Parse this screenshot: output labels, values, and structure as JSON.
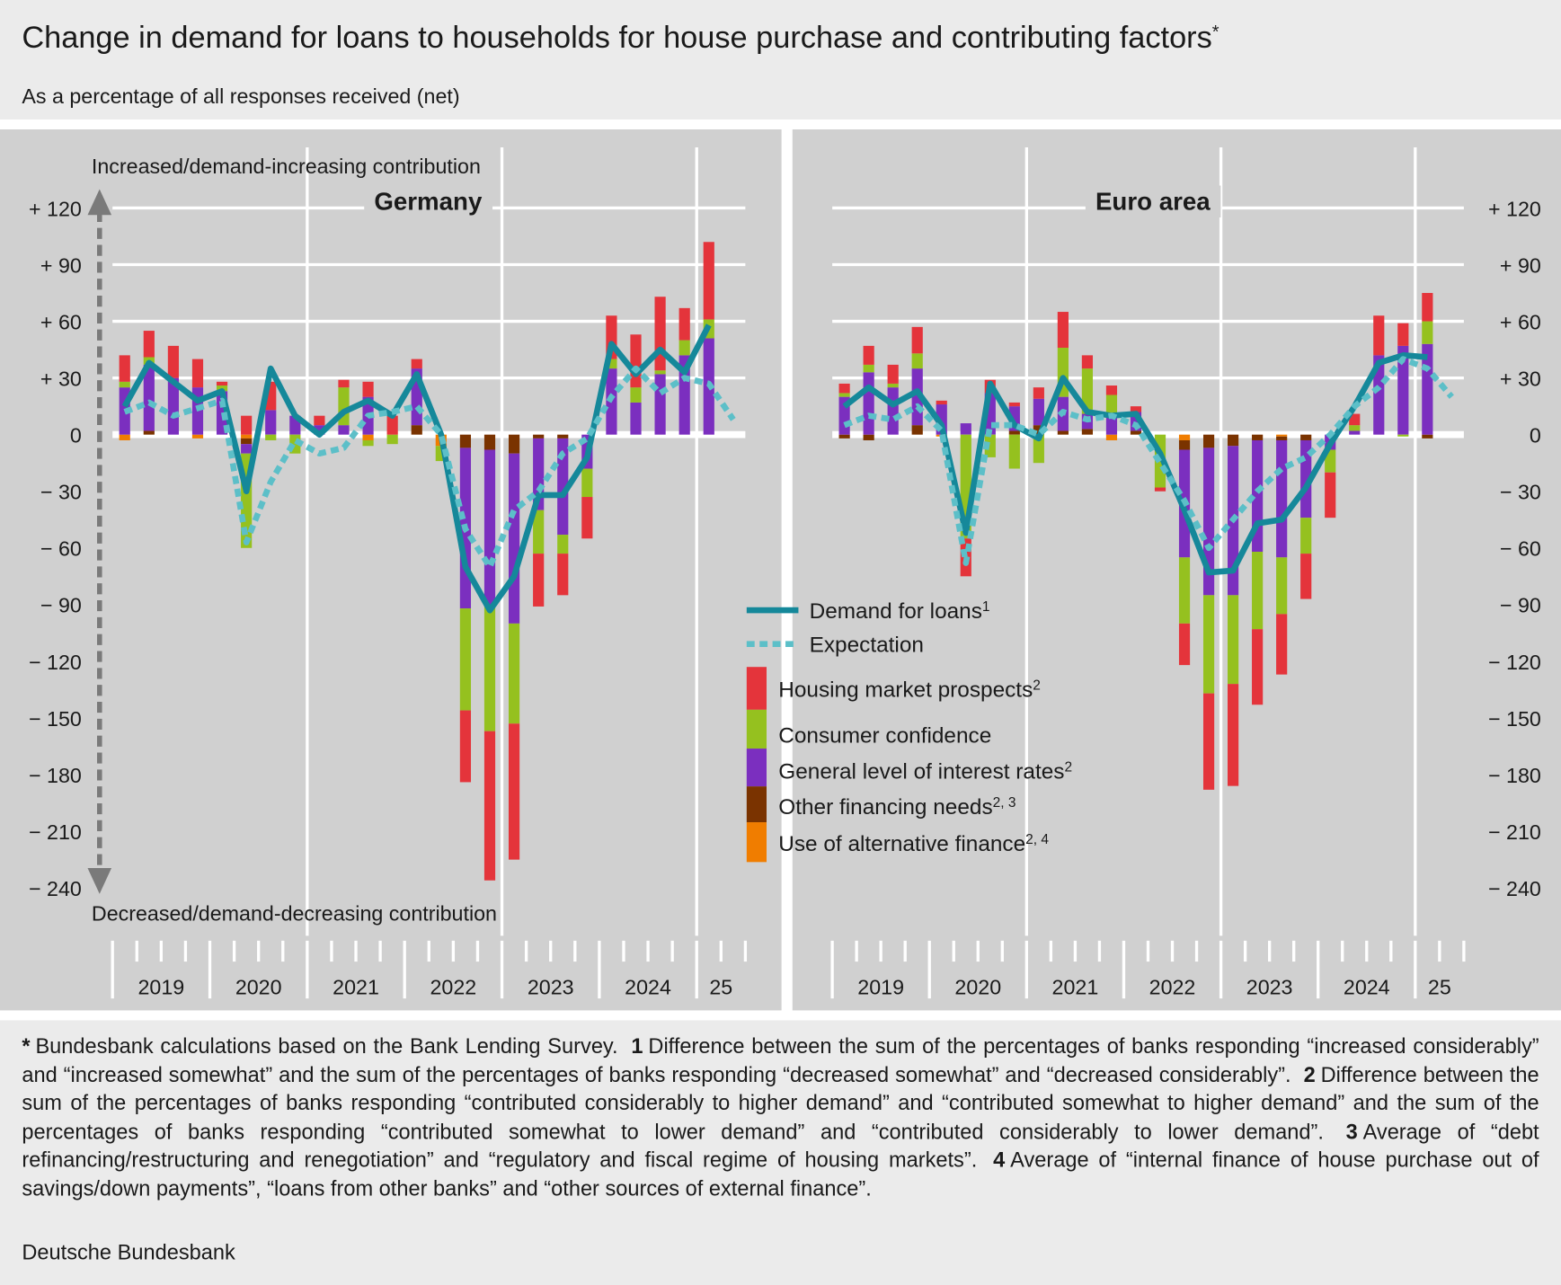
{
  "title": "Change in demand for loans to households for house purchase and contributing factors",
  "title_note": "*",
  "subtitle": "As a percentage of all responses received (net)",
  "axis_top_label": "Increased/demand-increasing contribution",
  "axis_bottom_label": "Decreased/demand-decreasing contribution",
  "legend": {
    "lines": [
      {
        "name": "Demand for loans",
        "note": "1",
        "color": "#15889a",
        "dashed": false
      },
      {
        "name": "Expectation",
        "note": null,
        "color": "#5cbfc8",
        "dashed": true
      }
    ],
    "bars": [
      {
        "name": "Housing market prospects",
        "note": "2",
        "color": "#e4343b"
      },
      {
        "name": "Consumer confidence",
        "note": null,
        "color": "#95c11f"
      },
      {
        "name": "General level of interest rates",
        "note": "2",
        "color": "#7b2fbf"
      },
      {
        "name": "Other financing needs",
        "note": "2, 3",
        "color": "#7a3300"
      },
      {
        "name": "Use of alternative finance",
        "note": "2, 4",
        "color": "#f07d00"
      }
    ]
  },
  "chart_data": [
    {
      "type": "bar",
      "title": "Germany",
      "years": [
        "2019",
        "2020",
        "2021",
        "2022",
        "2023",
        "2024",
        "25"
      ],
      "ylim": [
        -240,
        150
      ],
      "yticks": [
        {
          "value": 120,
          "label": "+ 120"
        },
        {
          "value": 90,
          "label": "+  90"
        },
        {
          "value": 60,
          "label": "+  60"
        },
        {
          "value": 30,
          "label": "+  30"
        },
        0,
        {
          "value": -30,
          "label": "−  30"
        },
        {
          "value": -60,
          "label": "−  60"
        },
        {
          "value": -90,
          "label": "−  90"
        },
        {
          "value": -120,
          "label": "− 120"
        },
        {
          "value": -150,
          "label": "− 150"
        },
        {
          "value": -180,
          "label": "− 180"
        },
        {
          "value": -210,
          "label": "− 210"
        },
        {
          "value": -240,
          "label": "− 240"
        }
      ],
      "grid": true,
      "series": [
        {
          "values": [
            14,
            14,
            17,
            15,
            2,
            10,
            15,
            0,
            5,
            4,
            8,
            10,
            5,
            0,
            -38,
            -79,
            -72,
            -28,
            -22,
            -22,
            23,
            28,
            39,
            17,
            41,
            null
          ]
        },
        {
          "values": [
            3,
            4,
            0,
            0,
            3,
            -50,
            -3,
            -10,
            0,
            20,
            -3,
            -5,
            0,
            -8,
            -54,
            -66,
            -53,
            -23,
            -10,
            -15,
            5,
            8,
            2,
            8,
            10,
            null
          ]
        },
        {
          "values": [
            25,
            35,
            30,
            25,
            23,
            -5,
            13,
            10,
            5,
            5,
            20,
            0,
            30,
            0,
            -85,
            -83,
            -90,
            -38,
            -51,
            -18,
            35,
            17,
            32,
            42,
            51,
            null
          ]
        },
        {
          "values": [
            0,
            2,
            0,
            0,
            0,
            -3,
            0,
            0,
            0,
            0,
            0,
            0,
            5,
            0,
            -7,
            -8,
            -10,
            -2,
            -2,
            0,
            0,
            0,
            0,
            0,
            0,
            null
          ]
        },
        {
          "values": [
            -3,
            0,
            0,
            -2,
            0,
            -2,
            0,
            0,
            0,
            0,
            -3,
            0,
            0,
            -6,
            0,
            0,
            0,
            0,
            0,
            0,
            0,
            0,
            0,
            0,
            0,
            null
          ]
        }
      ],
      "lines": [
        {
          "values": [
            15,
            38,
            28,
            18,
            23,
            -30,
            35,
            10,
            0,
            12,
            18,
            10,
            32,
            0,
            -70,
            -93,
            -75,
            -32,
            -32,
            -12,
            48,
            32,
            45,
            33,
            58,
            null
          ]
        },
        {
          "values": [
            12,
            17,
            10,
            14,
            18,
            -57,
            -25,
            -3,
            -10,
            -7,
            10,
            12,
            15,
            0,
            -50,
            -70,
            -40,
            -30,
            -10,
            -2,
            20,
            35,
            22,
            30,
            27,
            8
          ]
        }
      ]
    },
    {
      "type": "bar",
      "title": "Euro area",
      "years": [
        "2019",
        "2020",
        "2021",
        "2022",
        "2023",
        "2024",
        "25"
      ],
      "ylim": [
        -240,
        150
      ],
      "yticks": [
        {
          "value": 120,
          "label": "+ 120"
        },
        {
          "value": 90,
          "label": "+  90"
        },
        {
          "value": 60,
          "label": "+  60"
        },
        {
          "value": 30,
          "label": "+  30"
        },
        0,
        {
          "value": -30,
          "label": "−  30"
        },
        {
          "value": -60,
          "label": "−  60"
        },
        {
          "value": -90,
          "label": "−  90"
        },
        {
          "value": -120,
          "label": "− 120"
        },
        {
          "value": -150,
          "label": "− 150"
        },
        {
          "value": -180,
          "label": "− 180"
        },
        {
          "value": -210,
          "label": "− 210"
        },
        {
          "value": -240,
          "label": "− 240"
        }
      ],
      "grid": true,
      "series": [
        {
          "values": [
            5,
            10,
            10,
            14,
            2,
            -20,
            7,
            2,
            6,
            19,
            7,
            5,
            3,
            -2,
            -22,
            -51,
            -54,
            -40,
            -32,
            -24,
            -24,
            6,
            21,
            12,
            15,
            null
          ]
        },
        {
          "values": [
            2,
            4,
            2,
            8,
            0,
            -55,
            -12,
            -18,
            -15,
            26,
            24,
            11,
            0,
            -28,
            -35,
            -52,
            -47,
            -41,
            -30,
            -19,
            -12,
            3,
            0,
            -1,
            12,
            null
          ]
        },
        {
          "values": [
            20,
            33,
            25,
            30,
            16,
            6,
            22,
            13,
            14,
            18,
            8,
            10,
            10,
            0,
            -57,
            -78,
            -79,
            -59,
            -62,
            -41,
            -8,
            2,
            42,
            47,
            48,
            null
          ]
        },
        {
          "values": [
            -2,
            -3,
            0,
            5,
            0,
            0,
            0,
            2,
            5,
            2,
            3,
            0,
            2,
            0,
            -5,
            -7,
            -6,
            -3,
            -2,
            -3,
            0,
            0,
            0,
            0,
            -2,
            null
          ]
        },
        {
          "values": [
            0,
            0,
            0,
            0,
            -1,
            0,
            0,
            0,
            0,
            0,
            0,
            -3,
            0,
            0,
            -3,
            0,
            0,
            0,
            -1,
            0,
            0,
            0,
            0,
            0,
            0,
            null
          ]
        }
      ],
      "lines": [
        {
          "values": [
            15,
            25,
            16,
            23,
            5,
            -52,
            27,
            5,
            -2,
            30,
            12,
            10,
            11,
            -10,
            -40,
            -73,
            -72,
            -47,
            -45,
            -28,
            -5,
            15,
            38,
            42,
            41,
            null
          ]
        },
        {
          "values": [
            5,
            10,
            8,
            15,
            2,
            -68,
            5,
            5,
            0,
            12,
            8,
            10,
            5,
            -15,
            -35,
            -60,
            -45,
            -30,
            -18,
            -12,
            0,
            15,
            25,
            40,
            35,
            20
          ]
        }
      ]
    }
  ],
  "footnotes": [
    {
      "marker": "*",
      "text": "Bundesbank calculations based on the Bank Lending Survey."
    },
    {
      "marker": "1",
      "text": "Difference between the sum of the percentages of banks responding “increased considerably” and “increased somewhat” and the sum of the percentages of banks responding “decreased somewhat” and “decreased considerably”."
    },
    {
      "marker": "2",
      "text": "Difference between the sum of the percentages of banks responding “contributed considerably to higher demand” and “contributed somewhat to higher demand” and the sum of the percentages of banks responding “contributed somewhat to lower demand” and “contributed considerably to lower demand”."
    },
    {
      "marker": "3",
      "text": "Average of “debt refinancing/restructuring and renegotiation” and “regulatory and fiscal regime of housing markets”."
    },
    {
      "marker": "4",
      "text": "Average of “internal finance of house purchase out of savings/down payments”, “loans from other banks” and “other sources of external finance”."
    }
  ],
  "source": "Deutsche Bundesbank"
}
